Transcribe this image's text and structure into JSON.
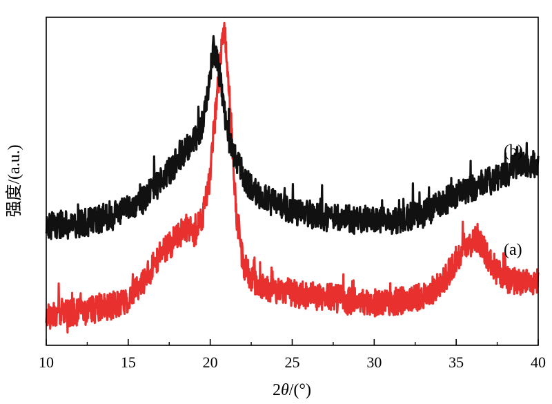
{
  "chart_data": {
    "type": "line",
    "xlabel_prefix": "2",
    "xlabel_symbol": "θ",
    "xlabel_suffix": "/(°)",
    "ylabel": "强度/(a.u.)",
    "xlim": [
      10,
      40
    ],
    "xticks": [
      10,
      15,
      20,
      25,
      30,
      35,
      40
    ],
    "ylim": [
      0,
      1
    ],
    "grid": false,
    "series": [
      {
        "name": "(a)",
        "color": "#e8302e",
        "x": [
          10,
          11,
          12,
          13,
          14,
          15,
          16,
          17,
          18,
          18.5,
          19,
          19.5,
          20,
          20.3,
          20.6,
          20.8,
          21,
          21.3,
          21.6,
          22,
          22.5,
          23,
          24,
          25,
          26,
          27,
          28,
          29,
          30,
          31,
          32,
          33,
          34,
          35,
          35.5,
          36,
          36.3,
          36.6,
          37,
          37.5,
          38,
          39,
          40
        ],
        "y": [
          0.09,
          0.1,
          0.1,
          0.11,
          0.12,
          0.14,
          0.2,
          0.28,
          0.33,
          0.36,
          0.34,
          0.38,
          0.52,
          0.7,
          0.85,
          0.97,
          0.9,
          0.65,
          0.4,
          0.25,
          0.2,
          0.18,
          0.17,
          0.16,
          0.15,
          0.15,
          0.14,
          0.13,
          0.13,
          0.13,
          0.14,
          0.15,
          0.18,
          0.26,
          0.3,
          0.31,
          0.33,
          0.3,
          0.26,
          0.22,
          0.2,
          0.19,
          0.2
        ]
      },
      {
        "name": "(b)",
        "color": "#111111",
        "x": [
          10,
          11,
          12,
          13,
          14,
          15,
          16,
          17,
          18,
          18.5,
          19,
          19.5,
          20,
          20.2,
          20.5,
          20.8,
          21,
          21.3,
          21.6,
          22,
          22.5,
          23,
          24,
          25,
          26,
          27,
          28,
          29,
          30,
          31,
          32,
          33,
          34,
          35,
          36,
          37,
          38,
          39,
          40
        ],
        "y": [
          0.36,
          0.37,
          0.37,
          0.38,
          0.4,
          0.42,
          0.45,
          0.5,
          0.56,
          0.6,
          0.62,
          0.67,
          0.82,
          0.92,
          0.85,
          0.74,
          0.66,
          0.6,
          0.56,
          0.52,
          0.48,
          0.46,
          0.43,
          0.41,
          0.4,
          0.39,
          0.39,
          0.38,
          0.38,
          0.38,
          0.39,
          0.4,
          0.43,
          0.46,
          0.48,
          0.5,
          0.52,
          0.56,
          0.55
        ]
      }
    ]
  }
}
